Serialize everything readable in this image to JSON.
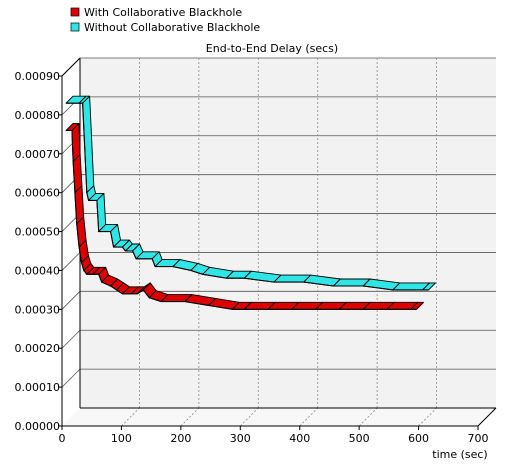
{
  "chart_data": {
    "type": "line",
    "style": "3d-ribbon",
    "title": "End-to-End Delay (secs)",
    "xlabel": "time (sec)",
    "ylabel": "",
    "xlim": [
      0,
      700
    ],
    "ylim": [
      0,
      0.0009
    ],
    "x_ticks": [
      "0",
      "100",
      "200",
      "300",
      "400",
      "500",
      "600",
      "700"
    ],
    "y_ticks": [
      "0.00000",
      "0.00010",
      "0.00020",
      "0.00030",
      "0.00040",
      "0.00050",
      "0.00060",
      "0.00070",
      "0.00080",
      "0.00090"
    ],
    "grid": true,
    "legend_position": "top-left",
    "series": [
      {
        "name": "With Collaborative Blackhole",
        "color": "#dd0000",
        "points": [
          [
            0,
            0.00076
          ],
          [
            10,
            0.00076
          ],
          [
            12,
            0.00068
          ],
          [
            15,
            0.0006
          ],
          [
            18,
            0.00052
          ],
          [
            22,
            0.00046
          ],
          [
            26,
            0.00042
          ],
          [
            30,
            0.0004
          ],
          [
            35,
            0.00039
          ],
          [
            45,
            0.00039
          ],
          [
            55,
            0.00039
          ],
          [
            60,
            0.00037
          ],
          [
            75,
            0.00036
          ],
          [
            85,
            0.00035
          ],
          [
            95,
            0.00034
          ],
          [
            110,
            0.00034
          ],
          [
            120,
            0.00034
          ],
          [
            130,
            0.00035
          ],
          [
            140,
            0.00033
          ],
          [
            160,
            0.00032
          ],
          [
            200,
            0.00032
          ],
          [
            240,
            0.00031
          ],
          [
            280,
            0.0003
          ],
          [
            300,
            0.0003
          ],
          [
            340,
            0.0003
          ],
          [
            380,
            0.0003
          ],
          [
            420,
            0.0003
          ],
          [
            460,
            0.0003
          ],
          [
            500,
            0.0003
          ],
          [
            540,
            0.0003
          ],
          [
            580,
            0.0003
          ],
          [
            590,
            0.0003
          ]
        ]
      },
      {
        "name": "Without Collaborative Blackhole",
        "color": "#2ee6e6",
        "points": [
          [
            0,
            0.00083
          ],
          [
            22,
            0.00083
          ],
          [
            28,
            0.00083
          ],
          [
            35,
            0.0006
          ],
          [
            38,
            0.00058
          ],
          [
            52,
            0.00058
          ],
          [
            55,
            0.0005
          ],
          [
            75,
            0.0005
          ],
          [
            80,
            0.00046
          ],
          [
            95,
            0.00046
          ],
          [
            100,
            0.00045
          ],
          [
            112,
            0.00045
          ],
          [
            118,
            0.00043
          ],
          [
            145,
            0.00043
          ],
          [
            150,
            0.00041
          ],
          [
            180,
            0.00041
          ],
          [
            210,
            0.0004
          ],
          [
            230,
            0.00039
          ],
          [
            270,
            0.00038
          ],
          [
            300,
            0.00038
          ],
          [
            350,
            0.00037
          ],
          [
            400,
            0.00037
          ],
          [
            450,
            0.00036
          ],
          [
            500,
            0.00036
          ],
          [
            550,
            0.00035
          ],
          [
            600,
            0.00035
          ],
          [
            610,
            0.00035
          ]
        ]
      }
    ]
  }
}
